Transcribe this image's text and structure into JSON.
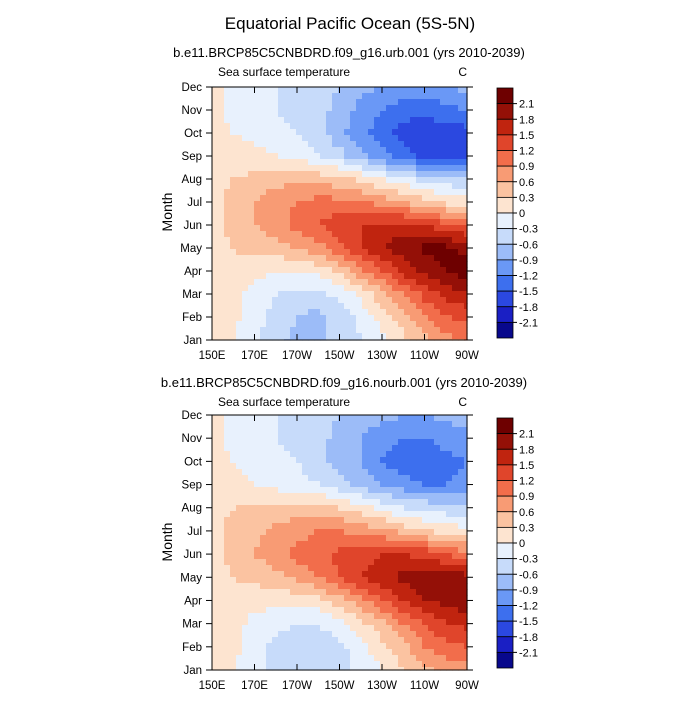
{
  "figure": {
    "title": "Equatorial Pacific Ocean (5S-5N)"
  },
  "chart_data": [
    {
      "type": "heatmap",
      "title": "b.e11.BRCP85C5CNBDRD.f09_g16.urb.001 (yrs 2010-2039)",
      "left_string": "Sea surface temperature",
      "right_string": "C",
      "ylabel": "Month",
      "xlabel": "",
      "x_ticks": [
        "150E",
        "170E",
        "170W",
        "150W",
        "130W",
        "110W",
        "90W"
      ],
      "y_ticks": [
        "Jan",
        "Feb",
        "Mar",
        "Apr",
        "May",
        "Jun",
        "Jul",
        "Aug",
        "Sep",
        "Oct",
        "Nov",
        "Dec"
      ],
      "xlim": [
        150,
        270
      ],
      "x_values": [
        150,
        160,
        170,
        180,
        190,
        200,
        210,
        220,
        230,
        240,
        250,
        260,
        270
      ],
      "months": [
        "Jan",
        "Feb",
        "Mar",
        "Apr",
        "May",
        "Jun",
        "Jul",
        "Aug",
        "Sep",
        "Oct",
        "Nov",
        "Dec"
      ],
      "z": [
        [
          0.2,
          0.0,
          -0.2,
          -0.5,
          -0.7,
          -0.7,
          -0.5,
          -0.3,
          -0.1,
          0.2,
          0.5,
          0.8,
          0.9
        ],
        [
          0.2,
          0.1,
          -0.2,
          -0.4,
          -0.6,
          -0.7,
          -0.5,
          -0.2,
          0.1,
          0.5,
          0.9,
          1.2,
          1.3
        ],
        [
          0.2,
          0.1,
          -0.1,
          -0.3,
          -0.4,
          -0.4,
          -0.2,
          0.1,
          0.5,
          0.9,
          1.3,
          1.6,
          1.8
        ],
        [
          0.2,
          0.2,
          0.1,
          0.0,
          0.0,
          0.1,
          0.4,
          0.8,
          1.2,
          1.6,
          1.9,
          2.1,
          2.3
        ],
        [
          0.2,
          0.3,
          0.4,
          0.5,
          0.6,
          0.8,
          1.1,
          1.5,
          1.8,
          2.0,
          2.2,
          2.2,
          2.0
        ],
        [
          0.2,
          0.4,
          0.6,
          0.8,
          1.0,
          1.2,
          1.4,
          1.5,
          1.6,
          1.6,
          1.5,
          1.3,
          1.1
        ],
        [
          0.2,
          0.4,
          0.6,
          0.8,
          0.9,
          1.0,
          1.0,
          0.9,
          0.8,
          0.6,
          0.4,
          0.2,
          0.1
        ],
        [
          0.2,
          0.3,
          0.4,
          0.5,
          0.5,
          0.5,
          0.4,
          0.2,
          0.0,
          -0.2,
          -0.4,
          -0.5,
          -0.5
        ],
        [
          0.1,
          0.1,
          0.1,
          0.0,
          -0.1,
          -0.3,
          -0.5,
          -0.8,
          -1.1,
          -1.4,
          -1.6,
          -1.7,
          -1.7
        ],
        [
          0.1,
          0.0,
          -0.1,
          -0.2,
          -0.3,
          -0.5,
          -0.8,
          -1.1,
          -1.4,
          -1.6,
          -1.7,
          -1.7,
          -1.6
        ],
        [
          0.1,
          -0.1,
          -0.2,
          -0.3,
          -0.4,
          -0.5,
          -0.7,
          -1.0,
          -1.2,
          -1.4,
          -1.4,
          -1.3,
          -1.2
        ],
        [
          0.2,
          -0.1,
          -0.2,
          -0.3,
          -0.4,
          -0.5,
          -0.6,
          -0.8,
          -0.9,
          -1.0,
          -1.0,
          -0.9,
          -0.8
        ]
      ]
    },
    {
      "type": "heatmap",
      "title": "b.e11.BRCP85C5CNBDRD.f09_g16.nourb.001 (yrs 2010-2039)",
      "left_string": "Sea surface temperature",
      "right_string": "C",
      "ylabel": "Month",
      "xlabel": "",
      "x_ticks": [
        "150E",
        "170E",
        "170W",
        "150W",
        "130W",
        "110W",
        "90W"
      ],
      "y_ticks": [
        "Jan",
        "Feb",
        "Mar",
        "Apr",
        "May",
        "Jun",
        "Jul",
        "Aug",
        "Sep",
        "Oct",
        "Nov",
        "Dec"
      ],
      "xlim": [
        150,
        270
      ],
      "x_values": [
        150,
        160,
        170,
        180,
        190,
        200,
        210,
        220,
        230,
        240,
        250,
        260,
        270
      ],
      "months": [
        "Jan",
        "Feb",
        "Mar",
        "Apr",
        "May",
        "Jun",
        "Jul",
        "Aug",
        "Sep",
        "Oct",
        "Nov",
        "Dec"
      ],
      "z": [
        [
          0.2,
          0.0,
          -0.2,
          -0.4,
          -0.6,
          -0.6,
          -0.4,
          -0.2,
          0.0,
          0.3,
          0.5,
          0.7,
          0.8
        ],
        [
          0.2,
          0.1,
          -0.2,
          -0.4,
          -0.5,
          -0.5,
          -0.4,
          -0.1,
          0.2,
          0.5,
          0.9,
          1.1,
          1.2
        ],
        [
          0.2,
          0.1,
          -0.1,
          -0.2,
          -0.3,
          -0.3,
          -0.1,
          0.2,
          0.5,
          0.9,
          1.2,
          1.5,
          1.6
        ],
        [
          0.2,
          0.2,
          0.1,
          0.1,
          0.1,
          0.2,
          0.5,
          0.8,
          1.2,
          1.5,
          1.8,
          1.9,
          2.0
        ],
        [
          0.2,
          0.3,
          0.4,
          0.5,
          0.7,
          0.9,
          1.2,
          1.5,
          1.7,
          1.9,
          2.0,
          2.0,
          1.9
        ],
        [
          0.2,
          0.4,
          0.6,
          0.8,
          1.0,
          1.1,
          1.3,
          1.4,
          1.5,
          1.5,
          1.4,
          1.2,
          1.0
        ],
        [
          0.2,
          0.4,
          0.5,
          0.7,
          0.8,
          0.9,
          0.9,
          0.8,
          0.7,
          0.5,
          0.3,
          0.2,
          0.1
        ],
        [
          0.2,
          0.3,
          0.4,
          0.4,
          0.4,
          0.4,
          0.3,
          0.1,
          -0.1,
          -0.3,
          -0.4,
          -0.5,
          -0.5
        ],
        [
          0.1,
          0.1,
          0.0,
          -0.1,
          -0.2,
          -0.3,
          -0.5,
          -0.7,
          -0.9,
          -1.1,
          -1.2,
          -1.2,
          -1.1
        ],
        [
          0.1,
          0.0,
          -0.1,
          -0.2,
          -0.3,
          -0.5,
          -0.7,
          -0.9,
          -1.2,
          -1.4,
          -1.4,
          -1.3,
          -1.2
        ],
        [
          0.1,
          -0.1,
          -0.2,
          -0.3,
          -0.4,
          -0.5,
          -0.7,
          -0.9,
          -1.1,
          -1.2,
          -1.2,
          -1.1,
          -1.0
        ],
        [
          0.2,
          -0.1,
          -0.2,
          -0.3,
          -0.4,
          -0.5,
          -0.6,
          -0.7,
          -0.8,
          -0.9,
          -0.9,
          -0.8,
          -0.7
        ]
      ]
    }
  ],
  "colorbar": {
    "levels": [
      -2.1,
      -1.8,
      -1.5,
      -1.2,
      -0.9,
      -0.6,
      -0.3,
      0,
      0.3,
      0.6,
      0.9,
      1.2,
      1.5,
      1.8,
      2.1
    ],
    "labels": [
      "-2.1",
      "-1.8",
      "-1.5",
      "-1.2",
      "-0.9",
      "-0.6",
      "-0.3",
      "0",
      "0.3",
      "0.6",
      "0.9",
      "1.2",
      "1.5",
      "1.8",
      "2.1"
    ],
    "colors": [
      "#08088c",
      "#1a1fc4",
      "#2b48e0",
      "#3d6fee",
      "#6a98f6",
      "#9cbcf8",
      "#c7dbfa",
      "#e8f1fd",
      "#fde4d0",
      "#fbc3a1",
      "#f89b74",
      "#f26d4b",
      "#e0452b",
      "#c0240f",
      "#941007",
      "#6e0000"
    ]
  }
}
